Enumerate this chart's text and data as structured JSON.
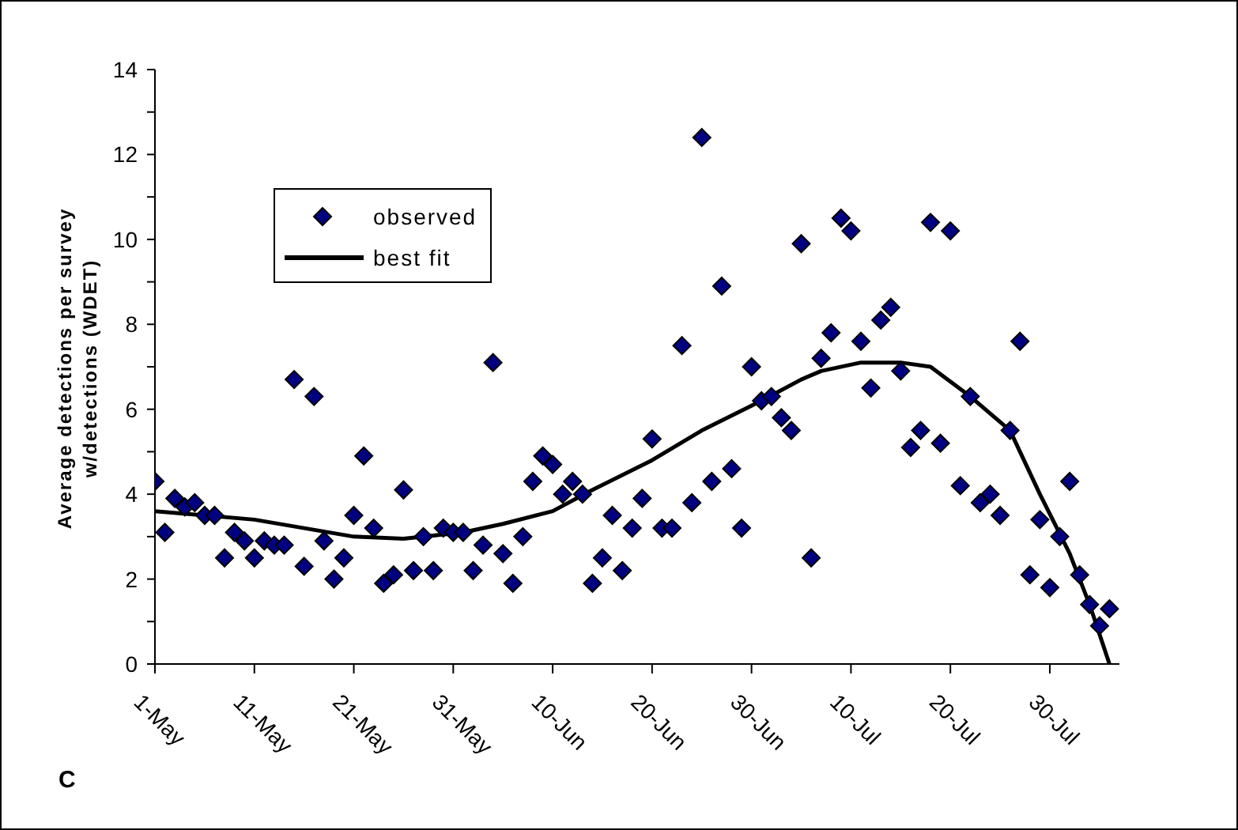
{
  "chart_data": {
    "type": "scatter",
    "ylabel": "Average detections per survey w/detections (WDET)",
    "annotations": [
      "C"
    ],
    "xlim": [
      "--05-01",
      "--08-06"
    ],
    "xticks": [
      {
        "value": "--05-01",
        "label": "1-May"
      },
      {
        "value": "--05-11",
        "label": "11-May"
      },
      {
        "value": "--05-21",
        "label": "21-May"
      },
      {
        "value": "--05-31",
        "label": "31-May"
      },
      {
        "value": "--06-10",
        "label": "10-Jun"
      },
      {
        "value": "--06-20",
        "label": "20-Jun"
      },
      {
        "value": "--06-30",
        "label": "30-Jun"
      },
      {
        "value": "--07-10",
        "label": "10-Jul"
      },
      {
        "value": "--07-20",
        "label": "20-Jul"
      },
      {
        "value": "--07-30",
        "label": "30-Jul"
      }
    ],
    "ylim": [
      0,
      14
    ],
    "yticks": [
      0,
      {
        "value": 1,
        "label": null
      },
      2,
      {
        "value": 3,
        "label": null
      },
      4,
      {
        "value": 5,
        "label": null
      },
      6,
      {
        "value": 7,
        "label": null
      },
      8,
      {
        "value": 9,
        "label": null
      },
      10,
      {
        "value": 11,
        "label": null
      },
      12,
      {
        "value": 13,
        "label": null
      },
      14
    ],
    "grid": false,
    "legend": "top left",
    "series": [
      {
        "name": "observed",
        "marker": "diamond",
        "color": "#000080",
        "x": [
          "--05-01",
          "--05-02",
          "--05-03",
          "--05-04",
          "--05-05",
          "--05-06",
          "--05-07",
          "--05-08",
          "--05-09",
          "--05-10",
          "--05-11",
          "--05-12",
          "--05-13",
          "--05-14",
          "--05-15",
          "--05-16",
          "--05-17",
          "--05-18",
          "--05-19",
          "--05-20",
          "--05-21",
          "--05-22",
          "--05-23",
          "--05-24",
          "--05-25",
          "--05-26",
          "--05-27",
          "--05-28",
          "--05-29",
          "--05-30",
          "--05-31",
          "--06-01",
          "--06-02",
          "--06-03",
          "--06-04",
          "--06-05",
          "--06-06",
          "--06-07",
          "--06-08",
          "--06-09",
          "--06-10",
          "--06-11",
          "--06-12",
          "--06-13",
          "--06-14",
          "--06-15",
          "--06-16",
          "--06-17",
          "--06-18",
          "--06-19",
          "--06-20",
          "--06-21",
          "--06-22",
          "--06-23",
          "--06-24",
          "--06-25",
          "--06-26",
          "--06-27",
          "--06-28",
          "--06-29",
          "--06-30",
          "--07-01",
          "--07-02",
          "--07-03",
          "--07-04",
          "--07-05",
          "--07-06",
          "--07-07",
          "--07-08",
          "--07-09",
          "--07-10",
          "--07-11",
          "--07-12",
          "--07-13",
          "--07-14",
          "--07-15",
          "--07-16",
          "--07-17",
          "--07-18",
          "--07-19",
          "--07-20",
          "--07-21",
          "--07-22",
          "--07-23",
          "--07-24",
          "--07-25",
          "--07-26",
          "--07-27",
          "--07-28",
          "--07-29",
          "--07-30",
          "--07-31",
          "--08-01",
          "--08-02",
          "--08-03",
          "--08-04",
          "--08-05"
        ],
        "values": [
          4.3,
          3.1,
          3.9,
          3.7,
          3.8,
          3.5,
          3.5,
          2.5,
          3.1,
          2.9,
          2.5,
          2.9,
          2.8,
          2.8,
          6.7,
          2.3,
          6.3,
          2.9,
          2.0,
          2.5,
          3.5,
          4.9,
          3.2,
          1.9,
          2.1,
          4.1,
          2.2,
          3.0,
          2.2,
          3.2,
          3.1,
          3.1,
          2.2,
          2.8,
          7.1,
          2.6,
          1.9,
          3.0,
          4.3,
          4.9,
          4.7,
          4.0,
          4.3,
          4.0,
          1.9,
          2.5,
          3.5,
          2.2,
          3.2,
          3.9,
          5.3,
          3.2,
          3.2,
          7.5,
          3.8,
          12.4,
          4.3,
          8.9,
          4.6,
          3.2,
          7.0,
          6.2,
          6.3,
          5.8,
          5.5,
          9.9,
          2.5,
          7.2,
          7.8,
          10.5,
          10.2,
          7.6,
          6.5,
          8.1,
          8.4,
          6.9,
          5.1,
          5.5,
          10.4,
          5.2,
          10.2,
          4.2,
          6.3,
          3.8,
          4.0,
          3.5,
          5.5,
          7.6,
          2.1,
          3.4,
          1.8,
          3.0,
          4.3,
          2.1,
          1.4,
          0.9,
          1.3
        ]
      },
      {
        "name": "best fit",
        "type": "line",
        "marker": "none",
        "line_style": "solid",
        "color": "#000000",
        "x": [
          "--05-01",
          "--05-11",
          "--05-21",
          "--05-26",
          "--06-01",
          "--06-05",
          "--06-10",
          "--06-14",
          "--06-20",
          "--06-25",
          "--07-01",
          "--07-05",
          "--07-07",
          "--07-11",
          "--07-15",
          "--07-18",
          "--07-22",
          "--07-26",
          "--07-29",
          "--08-01",
          "--08-03",
          "--08-05"
        ],
        "values": [
          3.6,
          3.4,
          3.0,
          2.95,
          3.1,
          3.3,
          3.6,
          4.1,
          4.8,
          5.5,
          6.2,
          6.7,
          6.9,
          7.1,
          7.1,
          7.0,
          6.3,
          5.5,
          4.0,
          2.6,
          1.4,
          0
        ]
      }
    ]
  }
}
